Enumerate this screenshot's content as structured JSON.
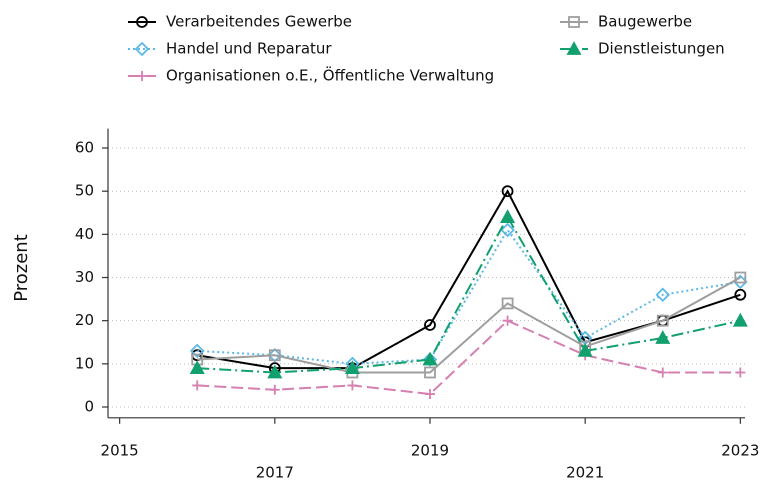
{
  "chart_data": {
    "type": "line",
    "y_label": "Prozent",
    "x": [
      2016,
      2017,
      2018,
      2019,
      2020,
      2021,
      2022,
      2023
    ],
    "series": [
      {
        "name": "Verarbeitendes Gewerbe",
        "color": "#000000",
        "marker": "circle",
        "dash": "none",
        "values": [
          12,
          9,
          9,
          19,
          50,
          15,
          20,
          26
        ]
      },
      {
        "name": "Handel und Reparatur",
        "color": "#5bb8e8",
        "marker": "diamond",
        "dash": "2 3",
        "values": [
          13,
          12,
          10,
          11,
          41,
          16,
          26,
          29
        ]
      },
      {
        "name": "Organisationen o.E., Öffentliche Verwaltung",
        "color": "#d67fb0",
        "marker": "plus",
        "dash": "12 5",
        "values": [
          5,
          4,
          5,
          3,
          20,
          12,
          8,
          8
        ]
      },
      {
        "name": "Baugewerbe",
        "color": "#9e9e9e",
        "marker": "square",
        "dash": "none",
        "values": [
          11,
          12,
          8,
          8,
          24,
          14,
          20,
          30
        ]
      },
      {
        "name": "Dienstleistungen",
        "color": "#11a06e",
        "marker": "triangle",
        "dash": "12 4 2 4",
        "values": [
          9,
          8,
          9,
          11,
          44,
          13,
          16,
          20
        ]
      }
    ],
    "xlim": [
      2014.85,
      2023.06
    ],
    "xticks": [
      2015,
      2017,
      2019,
      2021,
      2023
    ],
    "ylim": [
      -2.5,
      64.5
    ],
    "yticks": [
      0,
      10,
      20,
      30,
      40,
      50,
      60
    ],
    "grid": true
  }
}
